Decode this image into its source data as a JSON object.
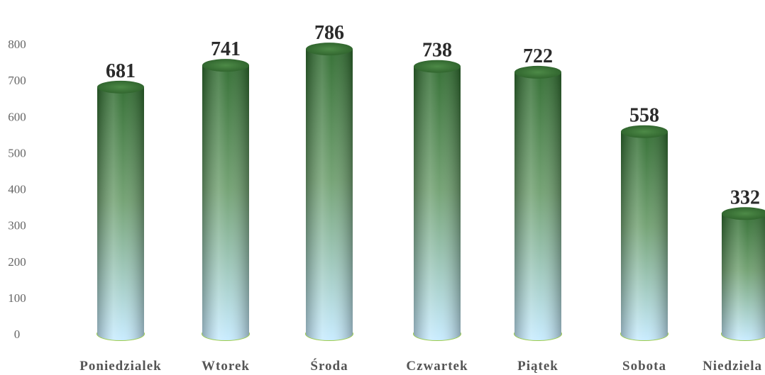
{
  "chart_data": {
    "type": "bar",
    "style": "3d-cylinder",
    "categories": [
      "Poniedzialek",
      "Wtorek",
      "Środa",
      "Czwartek",
      "Piątek",
      "Sobota",
      "Niedziela"
    ],
    "values": [
      681,
      741,
      786,
      738,
      722,
      558,
      332
    ],
    "ylim": [
      0,
      800
    ],
    "yticks": [
      "0",
      "100",
      "200",
      "300",
      "400",
      "500",
      "600",
      "700",
      "800"
    ],
    "data_labels": [
      "681",
      "741",
      "786",
      "738",
      "722",
      "558",
      "332"
    ],
    "grid": false,
    "legend": "none",
    "colors": {
      "bar_top": "#2e6b2e",
      "bar_mid": "#7aa57a",
      "bar_bottom": "#b8e2ff",
      "base_ring": "#9ccc4a",
      "cap": "#3e7a3a"
    }
  }
}
